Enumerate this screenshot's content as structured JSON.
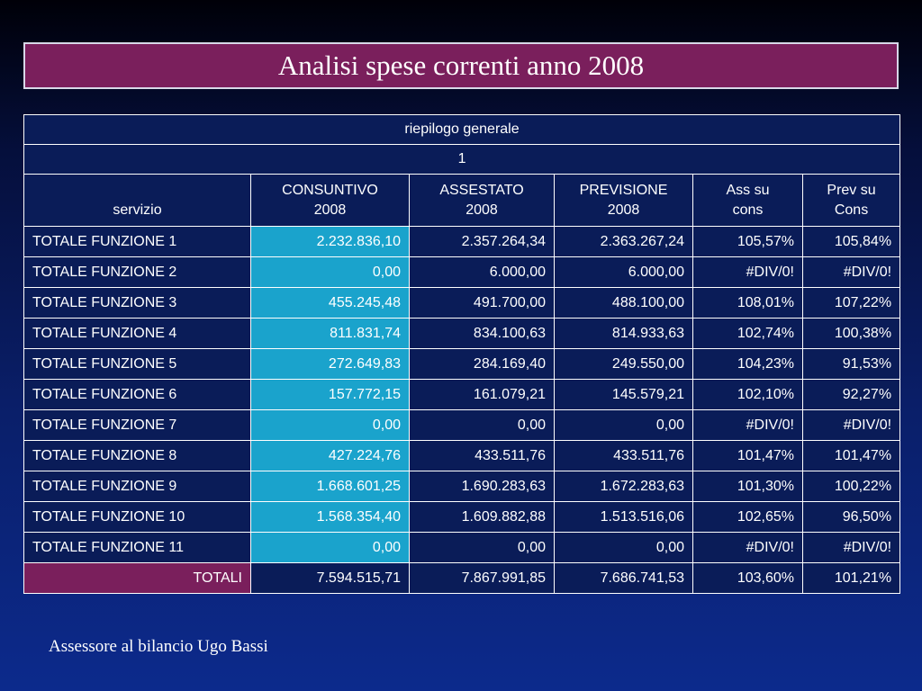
{
  "title": "Analisi spese correnti anno 2008",
  "table": {
    "caption": "riepilogo generale",
    "subcaption": "1",
    "headers": {
      "servizio": "servizio",
      "consuntivo": [
        "CONSUNTIVO",
        "2008"
      ],
      "assestato": [
        "ASSESTATO",
        "2008"
      ],
      "previsione": [
        "PREVISIONE",
        "2008"
      ],
      "ass_su_cons": [
        "Ass su",
        "cons"
      ],
      "prev_su_cons": [
        "Prev su",
        "Cons"
      ]
    },
    "rows": [
      [
        "TOTALE FUNZIONE 1",
        "2.232.836,10",
        "2.357.264,34",
        "2.363.267,24",
        "105,57%",
        "105,84%"
      ],
      [
        "TOTALE FUNZIONE 2",
        "0,00",
        "6.000,00",
        "6.000,00",
        "#DIV/0!",
        "#DIV/0!"
      ],
      [
        "TOTALE FUNZIONE 3",
        "455.245,48",
        "491.700,00",
        "488.100,00",
        "108,01%",
        "107,22%"
      ],
      [
        "TOTALE FUNZIONE 4",
        "811.831,74",
        "834.100,63",
        "814.933,63",
        "102,74%",
        "100,38%"
      ],
      [
        "TOTALE FUNZIONE 5",
        "272.649,83",
        "284.169,40",
        "249.550,00",
        "104,23%",
        "91,53%"
      ],
      [
        "TOTALE FUNZIONE 6",
        "157.772,15",
        "161.079,21",
        "145.579,21",
        "102,10%",
        "92,27%"
      ],
      [
        "TOTALE FUNZIONE 7",
        "0,00",
        "0,00",
        "0,00",
        "#DIV/0!",
        "#DIV/0!"
      ],
      [
        "TOTALE FUNZIONE 8",
        "427.224,76",
        "433.511,76",
        "433.511,76",
        "101,47%",
        "101,47%"
      ],
      [
        "TOTALE FUNZIONE 9",
        "1.668.601,25",
        "1.690.283,63",
        "1.672.283,63",
        "101,30%",
        "100,22%"
      ],
      [
        "TOTALE FUNZIONE 10",
        "1.568.354,40",
        "1.609.882,88",
        "1.513.516,06",
        "102,65%",
        "96,50%"
      ],
      [
        "TOTALE FUNZIONE 11",
        "0,00",
        "0,00",
        "0,00",
        "#DIV/0!",
        "#DIV/0!"
      ]
    ],
    "totals": [
      "TOTALI",
      "7.594.515,71",
      "7.867.991,85",
      "7.686.741,53",
      "103,60%",
      "101,21%"
    ]
  },
  "footer": "Assessore al bilancio Ugo Bassi",
  "colors": {
    "title_bg": "#7a1f5c",
    "cell_bg": "#0a1c58",
    "consuntivo_bg": "#1aa3cc",
    "totals_bg": "#7a1f5c"
  }
}
